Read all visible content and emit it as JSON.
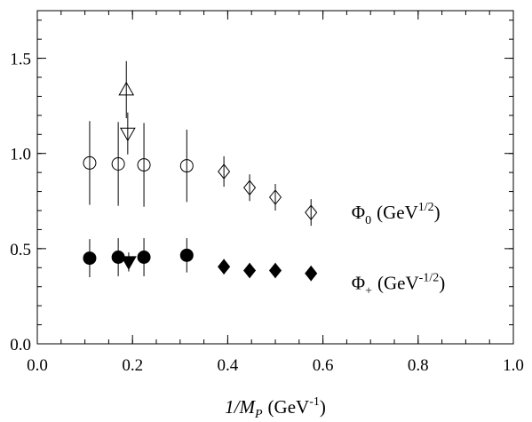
{
  "chart_data": {
    "type": "scatter",
    "xlim": [
      0.0,
      1.0
    ],
    "ylim": [
      0.0,
      1.75
    ],
    "x_ticks": [
      0.0,
      0.2,
      0.4,
      0.6,
      0.8,
      1.0
    ],
    "y_ticks": [
      0.0,
      0.5,
      1.0,
      1.5
    ],
    "x_tick_labels": [
      "0.0",
      "0.2",
      "0.4",
      "0.6",
      "0.8",
      "1.0"
    ],
    "y_tick_labels": [
      "0.0",
      "0.5",
      "1.0",
      "1.5"
    ],
    "x_minor_step": 0.05,
    "y_minor_step": 0.1,
    "xlabel": {
      "main": "1/M",
      "sub": "P",
      "unit": "(GeV",
      "sup": "-1",
      "close": ")"
    },
    "grid": false,
    "legend_placement": "right, inline labels beside the series",
    "series": [
      {
        "group": "phi0",
        "marker": "circle-open",
        "points": [
          {
            "x": 0.11,
            "y": 0.95,
            "yerr_low": 0.22,
            "yerr_high": 0.22
          },
          {
            "x": 0.17,
            "y": 0.945,
            "yerr_low": 0.22,
            "yerr_high": 0.22
          },
          {
            "x": 0.224,
            "y": 0.94,
            "yerr_low": 0.22,
            "yerr_high": 0.22
          },
          {
            "x": 0.314,
            "y": 0.935,
            "yerr_low": 0.19,
            "yerr_high": 0.19
          }
        ]
      },
      {
        "group": "phi0",
        "marker": "diamond-open",
        "points": [
          {
            "x": 0.392,
            "y": 0.905,
            "yerr_low": 0.08,
            "yerr_high": 0.08
          },
          {
            "x": 0.446,
            "y": 0.82,
            "yerr_low": 0.07,
            "yerr_high": 0.07
          },
          {
            "x": 0.5,
            "y": 0.77,
            "yerr_low": 0.07,
            "yerr_high": 0.07
          },
          {
            "x": 0.575,
            "y": 0.69,
            "yerr_low": 0.07,
            "yerr_high": 0.07
          }
        ]
      },
      {
        "group": "phi0",
        "marker": "triangle-up-open",
        "points": [
          {
            "x": 0.187,
            "y": 1.335,
            "yerr_low": 0.15,
            "yerr_high": 0.15
          }
        ]
      },
      {
        "group": "phi0",
        "marker": "triangle-down-open",
        "points": [
          {
            "x": 0.19,
            "y": 1.105,
            "yerr_low": 0.11,
            "yerr_high": 0.11
          }
        ]
      },
      {
        "group": "phiplus",
        "marker": "circle-filled",
        "points": [
          {
            "x": 0.11,
            "y": 0.45,
            "yerr_low": 0.1,
            "yerr_high": 0.1
          },
          {
            "x": 0.17,
            "y": 0.455,
            "yerr_low": 0.1,
            "yerr_high": 0.1
          },
          {
            "x": 0.224,
            "y": 0.455,
            "yerr_low": 0.1,
            "yerr_high": 0.1
          },
          {
            "x": 0.314,
            "y": 0.465,
            "yerr_low": 0.09,
            "yerr_high": 0.09
          }
        ]
      },
      {
        "group": "phiplus",
        "marker": "diamond-filled",
        "points": [
          {
            "x": 0.392,
            "y": 0.405,
            "yerr_low": 0.04,
            "yerr_high": 0.04
          },
          {
            "x": 0.446,
            "y": 0.385,
            "yerr_low": 0.04,
            "yerr_high": 0.04
          },
          {
            "x": 0.5,
            "y": 0.385,
            "yerr_low": 0.04,
            "yerr_high": 0.04
          },
          {
            "x": 0.575,
            "y": 0.37,
            "yerr_low": 0.04,
            "yerr_high": 0.04
          }
        ]
      },
      {
        "group": "phiplus",
        "marker": "triangle-down-filled",
        "points": [
          {
            "x": 0.192,
            "y": 0.43,
            "yerr_low": 0.05,
            "yerr_high": 0.05
          }
        ]
      }
    ],
    "annotations": [
      {
        "group": "phi0",
        "anchor_x": 0.66,
        "anchor_y": 0.69,
        "symbol": "Φ",
        "sub": "0",
        "unit": "(GeV",
        "sup": "1/2",
        "close": ")"
      },
      {
        "group": "phiplus",
        "anchor_x": 0.66,
        "anchor_y": 0.32,
        "symbol": "Φ",
        "sub": "+",
        "unit": "(GeV",
        "sup": "-1/2",
        "close": ")"
      }
    ]
  }
}
